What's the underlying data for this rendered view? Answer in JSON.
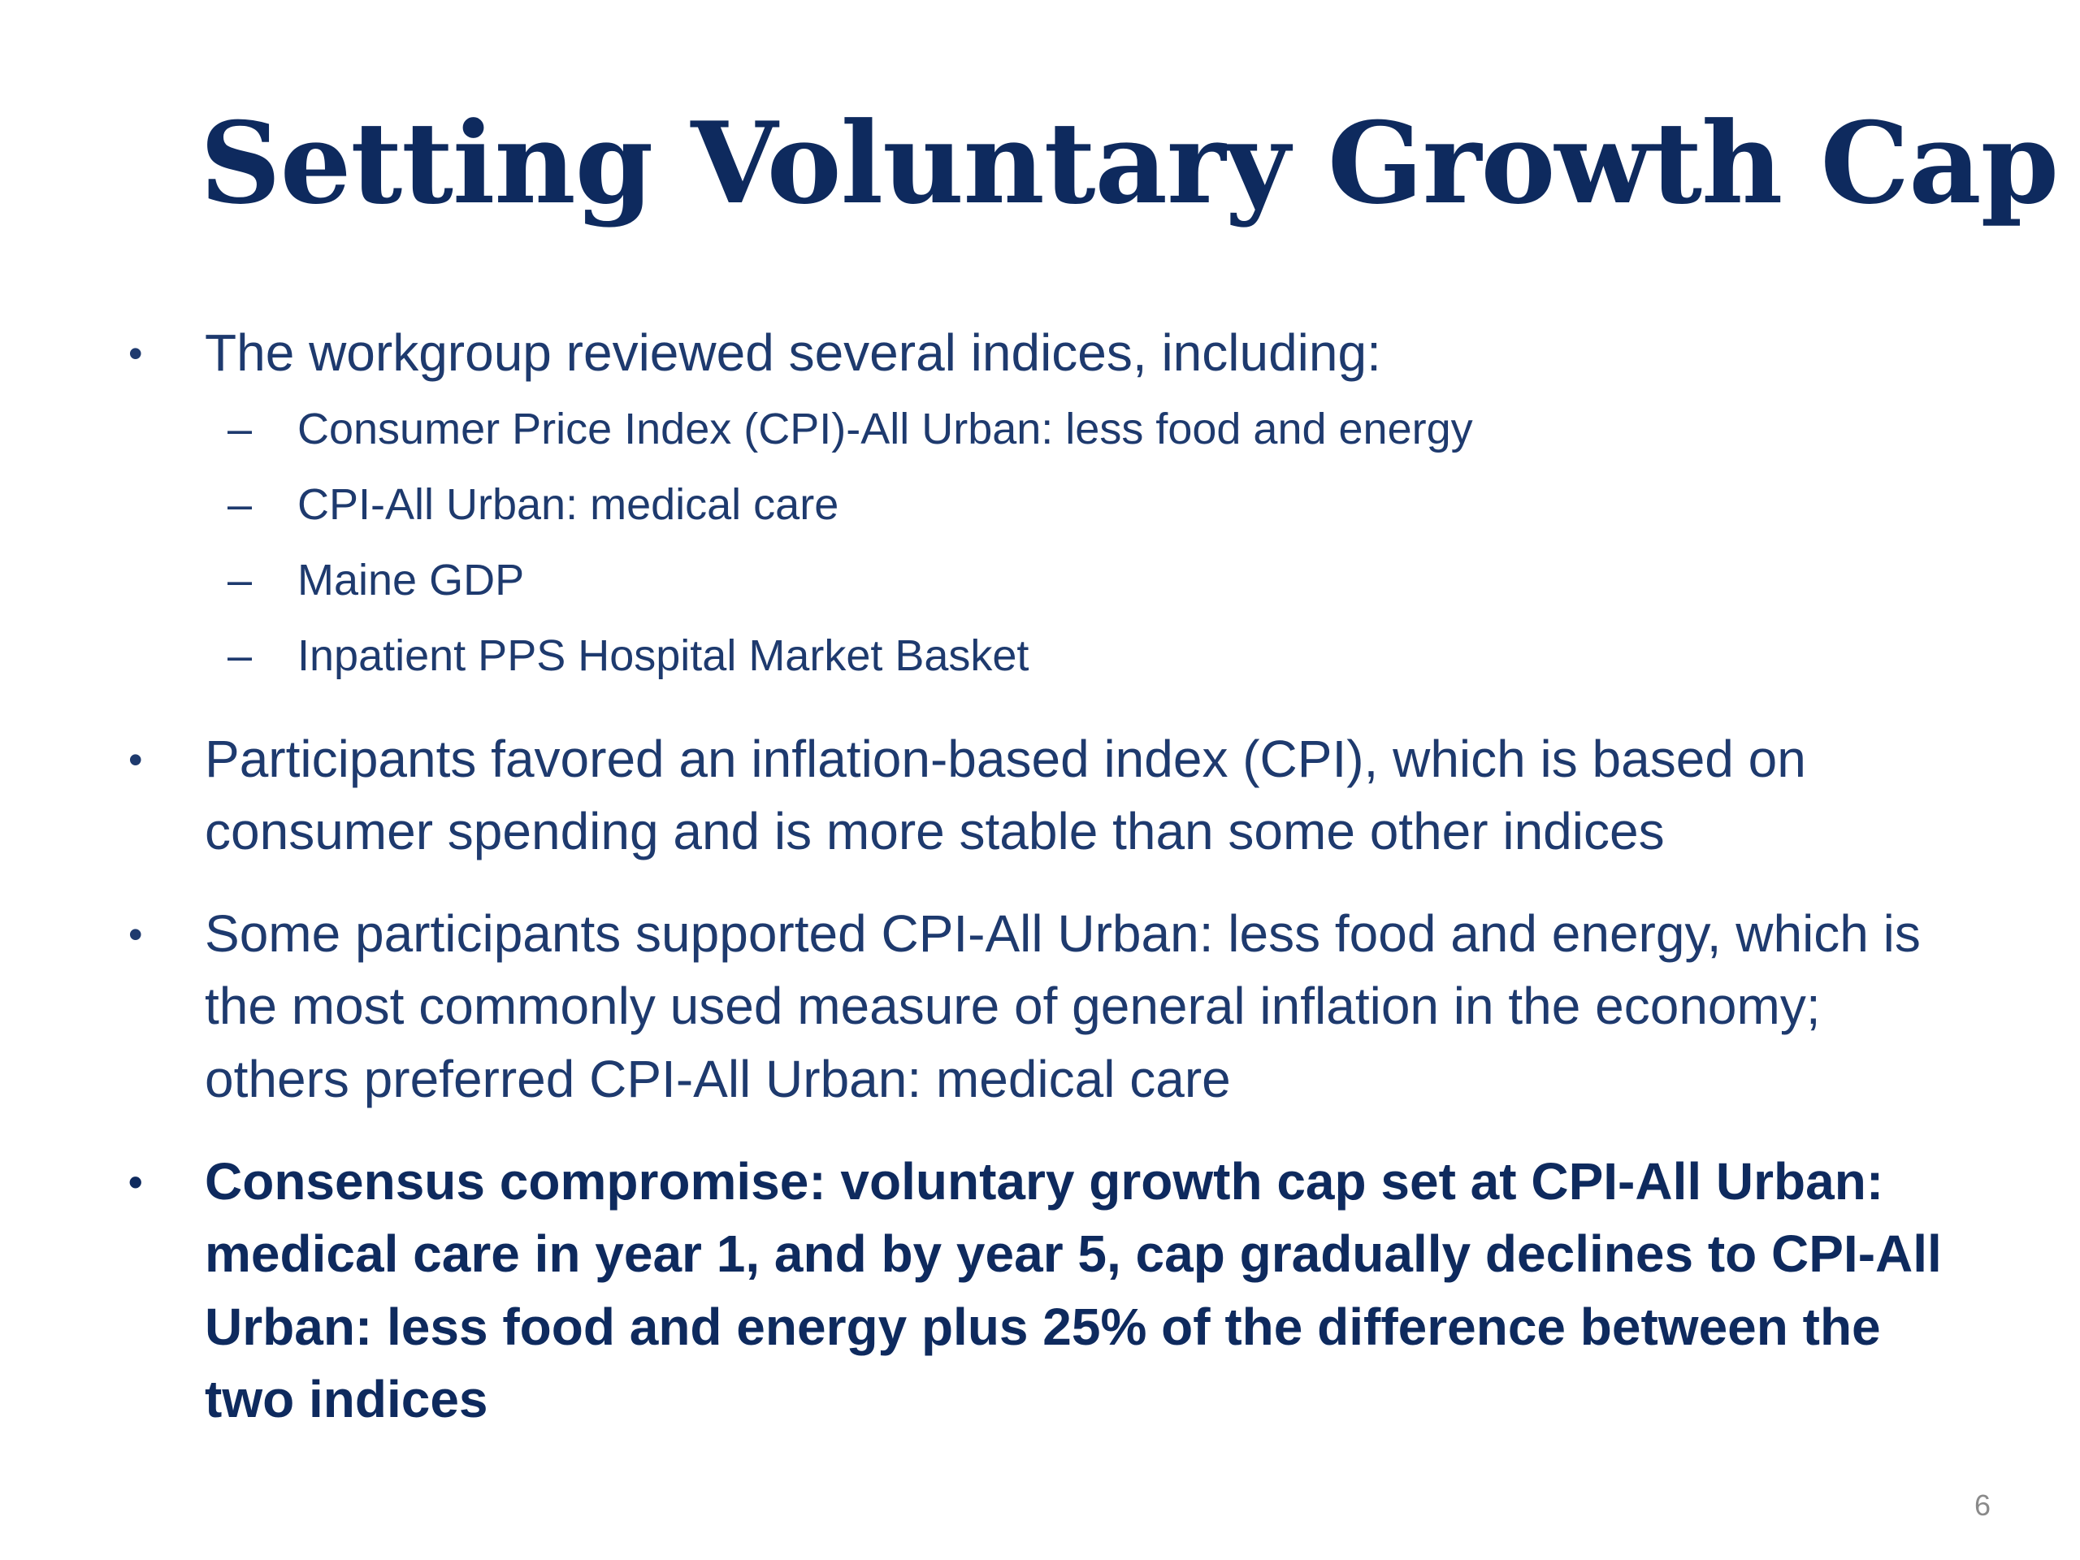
{
  "slide": {
    "title": "Setting Voluntary Growth Cap",
    "bullets": [
      {
        "text": "The workgroup reviewed several indices, including:",
        "sub_items": [
          "Consumer Price Index (CPI)-All Urban: less food and energy",
          "CPI-All Urban: medical care",
          "Maine GDP",
          "Inpatient PPS Hospital Market Basket"
        ]
      },
      {
        "text": "Participants favored an inflation-based index (CPI), which is based on consumer spending and is more stable than some other indices"
      },
      {
        "text": "Some participants supported CPI-All Urban: less food and energy, which is the most commonly used measure of general inflation in the economy; others preferred CPI-All Urban: medical care"
      },
      {
        "text": "Consensus compromise: voluntary growth cap set at CPI-All Urban: medical care in year 1, and by year 5, cap gradually declines to CPI-All Urban: less food and energy plus 25% of the difference between the two indices"
      }
    ],
    "page_number": "6",
    "bullet_glyph": "•",
    "dash_glyph": "–"
  },
  "colors": {
    "title": "#0e2a5e",
    "body": "#1e3a6e",
    "page_number": "#8a8a8a",
    "background": "#ffffff"
  }
}
